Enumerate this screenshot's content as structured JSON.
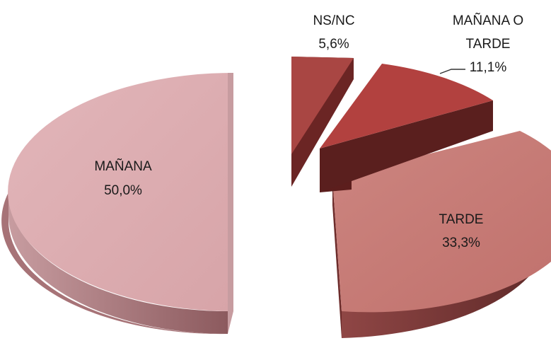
{
  "chart_data": {
    "type": "pie",
    "style": "3d-exploded",
    "labels": [
      "MAÑANA",
      "TARDE",
      "MAÑANA O TARDE",
      "NS/NC"
    ],
    "values": [
      50.0,
      33.3,
      11.1,
      5.6
    ],
    "value_labels": [
      "50,0%",
      "33,3%",
      "11,1%",
      "5,6%"
    ],
    "colors": [
      "#DBAAAE",
      "#C47772",
      "#B2413F",
      "#A94643"
    ],
    "side_colors": [
      "#A77377",
      "#763736",
      "#5C1E1D",
      "#6B2524"
    ],
    "legend": "none",
    "title": ""
  }
}
